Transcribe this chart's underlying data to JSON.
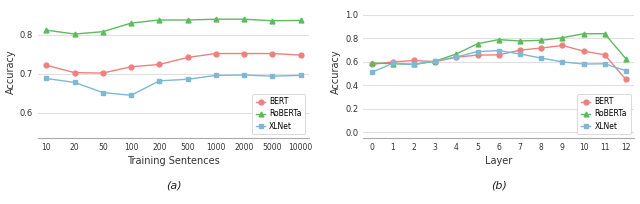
{
  "left": {
    "x_labels": [
      "10",
      "20",
      "50",
      "100",
      "200",
      "500",
      "1000",
      "2000",
      "5000",
      "10000"
    ],
    "bert": [
      0.722,
      0.703,
      0.702,
      0.718,
      0.724,
      0.742,
      0.752,
      0.752,
      0.752,
      0.748
    ],
    "roberta": [
      0.812,
      0.802,
      0.808,
      0.83,
      0.838,
      0.838,
      0.84,
      0.84,
      0.836,
      0.837
    ],
    "xlnet": [
      0.688,
      0.678,
      0.652,
      0.645,
      0.682,
      0.686,
      0.696,
      0.697,
      0.694,
      0.696
    ],
    "xlabel": "Training Sentences",
    "ylabel": "Accuracy",
    "caption": "(a)",
    "ylim": [
      0.535,
      0.875
    ],
    "yticks": [
      0.6,
      0.7,
      0.8
    ]
  },
  "right": {
    "x_vals": [
      0,
      1,
      2,
      3,
      4,
      5,
      6,
      7,
      8,
      9,
      10,
      11,
      12
    ],
    "bert": [
      0.578,
      0.6,
      0.612,
      0.602,
      0.64,
      0.658,
      0.66,
      0.7,
      0.718,
      0.74,
      0.692,
      0.66,
      0.45
    ],
    "roberta": [
      0.59,
      0.585,
      0.578,
      0.606,
      0.668,
      0.755,
      0.79,
      0.778,
      0.784,
      0.806,
      0.84,
      0.84,
      0.626
    ],
    "xlnet": [
      0.51,
      0.588,
      0.578,
      0.608,
      0.642,
      0.688,
      0.696,
      0.668,
      0.632,
      0.6,
      0.582,
      0.584,
      0.524
    ],
    "xlabel": "Layer",
    "ylabel": "Accuracy",
    "caption": "(b)",
    "ylim": [
      -0.05,
      1.08
    ],
    "yticks": [
      0.0,
      0.2,
      0.4,
      0.6,
      0.8,
      1.0
    ]
  },
  "bert_color": "#F08080",
  "roberta_color": "#5DBB5D",
  "xlnet_color": "#7EB8D4",
  "bg_color": "#FFFFFF",
  "grid_color": "#E0E0E0",
  "linewidth": 1.0,
  "markersize": 3.5
}
